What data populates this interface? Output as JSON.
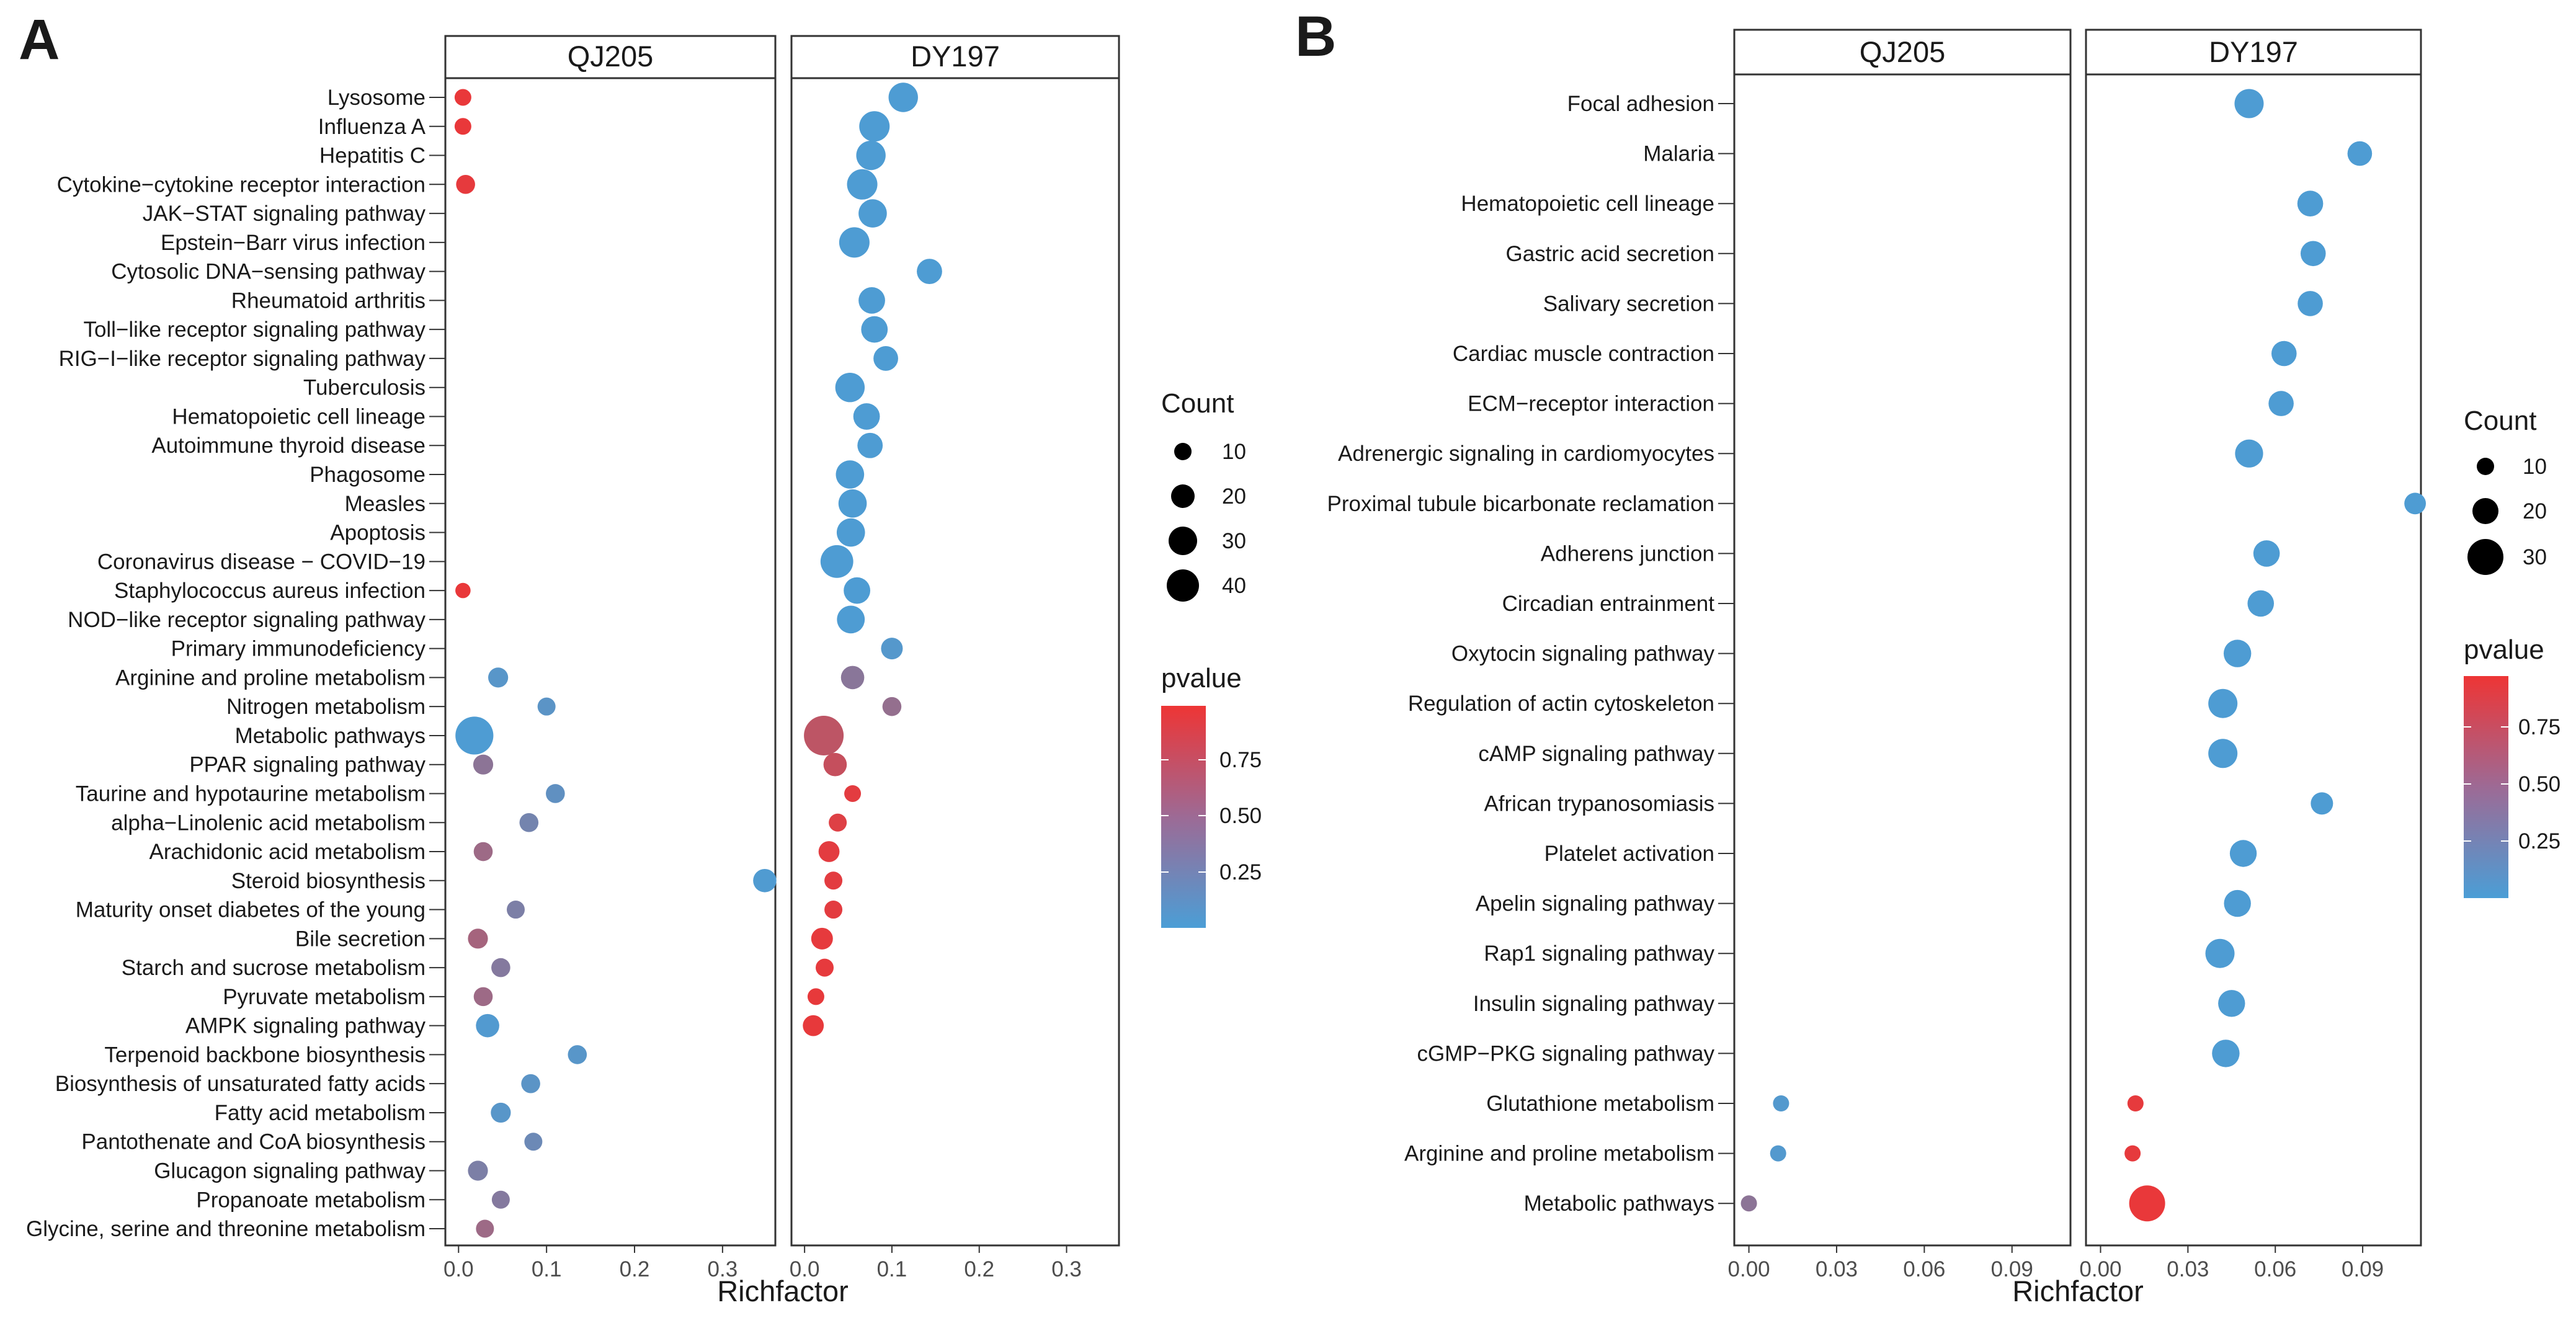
{
  "panelA": {
    "letter": "A",
    "facets": [
      "QJ205",
      "DY197"
    ],
    "xlabel": "Richfactor",
    "xticks": [
      "0.0",
      "0.1",
      "0.2",
      "0.3"
    ],
    "legend": {
      "count_title": "Count",
      "count_labels": [
        "10",
        "20",
        "30",
        "40"
      ],
      "pvalue_title": "pvalue",
      "pvalue_labels": [
        "0.75",
        "0.50",
        "0.25"
      ]
    }
  },
  "panelB": {
    "letter": "B",
    "facets": [
      "QJ205",
      "DY197"
    ],
    "xlabel": "Richfactor",
    "xticks": [
      "0.00",
      "0.03",
      "0.06",
      "0.09"
    ],
    "legend": {
      "count_title": "Count",
      "count_labels": [
        "10",
        "20",
        "30"
      ],
      "pvalue_title": "pvalue",
      "pvalue_labels": [
        "0.75",
        "0.50",
        "0.25"
      ]
    }
  },
  "colors": {
    "low_p": "#4B9ED6",
    "high_p": "#EE3535"
  },
  "chart_data": [
    {
      "panel": "A",
      "type": "scatter",
      "title": "",
      "xlabel": "Richfactor",
      "ylabel": "",
      "xlim": [
        -0.015,
        0.36
      ],
      "facets": [
        "QJ205",
        "DY197"
      ],
      "size_legend": [
        10,
        20,
        30,
        40
      ],
      "color_legend": [
        0.75,
        0.5,
        0.25
      ],
      "categories": [
        "Lysosome",
        "Influenza A",
        "Hepatitis C",
        "Cytokine−cytokine receptor interaction",
        "JAK−STAT signaling pathway",
        "Epstein−Barr virus infection",
        "Cytosolic DNA−sensing pathway",
        "Rheumatoid arthritis",
        "Toll−like receptor signaling pathway",
        "RIG−I−like receptor signaling pathway",
        "Tuberculosis",
        "Hematopoietic cell lineage",
        "Autoimmune thyroid disease",
        "Phagosome",
        "Measles",
        "Apoptosis",
        "Coronavirus disease − COVID−19",
        "Staphylococcus aureus infection",
        "NOD−like receptor signaling pathway",
        "Primary immunodeficiency",
        "Arginine and proline metabolism",
        "Nitrogen metabolism",
        "Metabolic pathways",
        "PPAR signaling pathway",
        "Taurine and hypotaurine metabolism",
        "alpha−Linolenic acid metabolism",
        "Arachidonic acid metabolism",
        "Steroid biosynthesis",
        "Maturity onset diabetes of the young",
        "Bile secretion",
        "Starch and sucrose metabolism",
        "Pyruvate metabolism",
        "AMPK signaling pathway",
        "Terpenoid backbone biosynthesis",
        "Biosynthesis of unsaturated fatty acids",
        "Fatty acid metabolism",
        "Pantothenate and CoA biosynthesis",
        "Glucagon signaling pathway",
        "Propanoate metabolism",
        "Glycine, serine and threonine metabolism"
      ],
      "series": [
        {
          "name": "QJ205",
          "points": [
            {
              "cat": "Lysosome",
              "x": 0.005,
              "count": 3,
              "pvalue": 0.97
            },
            {
              "cat": "Influenza A",
              "x": 0.005,
              "count": 3,
              "pvalue": 0.97
            },
            {
              "cat": "Cytokine−cytokine receptor interaction",
              "x": 0.008,
              "count": 5,
              "pvalue": 0.95
            },
            {
              "cat": "Staphylococcus aureus infection",
              "x": 0.005,
              "count": 2,
              "pvalue": 0.97
            },
            {
              "cat": "Arginine and proline metabolism",
              "x": 0.045,
              "count": 6,
              "pvalue": 0.08
            },
            {
              "cat": "Nitrogen metabolism",
              "x": 0.1,
              "count": 4,
              "pvalue": 0.1
            },
            {
              "cat": "Metabolic pathways",
              "x": 0.018,
              "count": 40,
              "pvalue": 0.02
            },
            {
              "cat": "PPAR signaling pathway",
              "x": 0.028,
              "count": 6,
              "pvalue": 0.4
            },
            {
              "cat": "Taurine and hypotaurine metabolism",
              "x": 0.11,
              "count": 5,
              "pvalue": 0.13
            },
            {
              "cat": "alpha−Linolenic acid metabolism",
              "x": 0.08,
              "count": 5,
              "pvalue": 0.25
            },
            {
              "cat": "Arachidonic acid metabolism",
              "x": 0.028,
              "count": 5,
              "pvalue": 0.5
            },
            {
              "cat": "Steroid biosynthesis",
              "x": 0.348,
              "count": 10,
              "pvalue": 0.03
            },
            {
              "cat": "Maturity onset diabetes of the young",
              "x": 0.065,
              "count": 4,
              "pvalue": 0.3
            },
            {
              "cat": "Bile secretion",
              "x": 0.022,
              "count": 6,
              "pvalue": 0.55
            },
            {
              "cat": "Starch and sucrose metabolism",
              "x": 0.048,
              "count": 5,
              "pvalue": 0.35
            },
            {
              "cat": "Pyruvate metabolism",
              "x": 0.028,
              "count": 5,
              "pvalue": 0.5
            },
            {
              "cat": "AMPK signaling pathway",
              "x": 0.033,
              "count": 10,
              "pvalue": 0.04
            },
            {
              "cat": "Terpenoid backbone biosynthesis",
              "x": 0.135,
              "count": 5,
              "pvalue": 0.08
            },
            {
              "cat": "Biosynthesis of unsaturated fatty acids",
              "x": 0.082,
              "count": 5,
              "pvalue": 0.1
            },
            {
              "cat": "Fatty acid metabolism",
              "x": 0.048,
              "count": 6,
              "pvalue": 0.08
            },
            {
              "cat": "Pantothenate and CoA biosynthesis",
              "x": 0.085,
              "count": 4,
              "pvalue": 0.2
            },
            {
              "cat": "Glucagon signaling pathway",
              "x": 0.022,
              "count": 6,
              "pvalue": 0.3
            },
            {
              "cat": "Propanoate metabolism",
              "x": 0.048,
              "count": 4,
              "pvalue": 0.35
            },
            {
              "cat": "Glycine, serine and threonine metabolism",
              "x": 0.03,
              "count": 4,
              "pvalue": 0.5
            }
          ]
        },
        {
          "name": "DY197",
          "points": [
            {
              "cat": "Lysosome",
              "x": 0.113,
              "count": 20,
              "pvalue": 0.02
            },
            {
              "cat": "Influenza A",
              "x": 0.08,
              "count": 22,
              "pvalue": 0.02
            },
            {
              "cat": "Hepatitis C",
              "x": 0.076,
              "count": 20,
              "pvalue": 0.02
            },
            {
              "cat": "Cytokine−cytokine receptor interaction",
              "x": 0.066,
              "count": 22,
              "pvalue": 0.02
            },
            {
              "cat": "JAK−STAT signaling pathway",
              "x": 0.078,
              "count": 18,
              "pvalue": 0.02
            },
            {
              "cat": "Epstein−Barr virus infection",
              "x": 0.057,
              "count": 22,
              "pvalue": 0.02
            },
            {
              "cat": "Cytosolic DNA−sensing pathway",
              "x": 0.143,
              "count": 13,
              "pvalue": 0.02
            },
            {
              "cat": "Rheumatoid arthritis",
              "x": 0.077,
              "count": 15,
              "pvalue": 0.02
            },
            {
              "cat": "Toll−like receptor signaling pathway",
              "x": 0.08,
              "count": 15,
              "pvalue": 0.02
            },
            {
              "cat": "RIG−I−like receptor signaling pathway",
              "x": 0.093,
              "count": 12,
              "pvalue": 0.02
            },
            {
              "cat": "Tuberculosis",
              "x": 0.052,
              "count": 20,
              "pvalue": 0.02
            },
            {
              "cat": "Hematopoietic cell lineage",
              "x": 0.071,
              "count": 15,
              "pvalue": 0.02
            },
            {
              "cat": "Autoimmune thyroid disease",
              "x": 0.075,
              "count": 13,
              "pvalue": 0.02
            },
            {
              "cat": "Phagosome",
              "x": 0.052,
              "count": 18,
              "pvalue": 0.02
            },
            {
              "cat": "Measles",
              "x": 0.055,
              "count": 18,
              "pvalue": 0.02
            },
            {
              "cat": "Apoptosis",
              "x": 0.053,
              "count": 18,
              "pvalue": 0.02
            },
            {
              "cat": "Coronavirus disease − COVID−19",
              "x": 0.037,
              "count": 27,
              "pvalue": 0.02
            },
            {
              "cat": "Staphylococcus aureus infection",
              "x": 0.06,
              "count": 15,
              "pvalue": 0.02
            },
            {
              "cat": "NOD−like receptor signaling pathway",
              "x": 0.053,
              "count": 17,
              "pvalue": 0.02
            },
            {
              "cat": "Primary immunodeficiency",
              "x": 0.1,
              "count": 8,
              "pvalue": 0.06
            },
            {
              "cat": "Arginine and proline metabolism",
              "x": 0.055,
              "count": 10,
              "pvalue": 0.38
            },
            {
              "cat": "Nitrogen metabolism",
              "x": 0.1,
              "count": 5,
              "pvalue": 0.45
            },
            {
              "cat": "Metabolic pathways",
              "x": 0.022,
              "count": 45,
              "pvalue": 0.7
            },
            {
              "cat": "PPAR signaling pathway",
              "x": 0.035,
              "count": 10,
              "pvalue": 0.75
            },
            {
              "cat": "Taurine and hypotaurine metabolism",
              "x": 0.055,
              "count": 3,
              "pvalue": 0.93
            },
            {
              "cat": "alpha−Linolenic acid metabolism",
              "x": 0.038,
              "count": 4,
              "pvalue": 0.9
            },
            {
              "cat": "Arachidonic acid metabolism",
              "x": 0.028,
              "count": 7,
              "pvalue": 0.93
            },
            {
              "cat": "Steroid biosynthesis",
              "x": 0.033,
              "count": 4,
              "pvalue": 0.93
            },
            {
              "cat": "Maturity onset diabetes of the young",
              "x": 0.033,
              "count": 4,
              "pvalue": 0.93
            },
            {
              "cat": "Bile secretion",
              "x": 0.02,
              "count": 8,
              "pvalue": 0.95
            },
            {
              "cat": "Starch and sucrose metabolism",
              "x": 0.023,
              "count": 4,
              "pvalue": 0.95
            },
            {
              "cat": "Pyruvate metabolism",
              "x": 0.013,
              "count": 3,
              "pvalue": 0.96
            },
            {
              "cat": "AMPK signaling pathway",
              "x": 0.01,
              "count": 7,
              "pvalue": 0.96
            }
          ]
        }
      ]
    },
    {
      "panel": "B",
      "type": "scatter",
      "title": "",
      "xlabel": "Richfactor",
      "ylabel": "",
      "xlim": [
        -0.005,
        0.11
      ],
      "facets": [
        "QJ205",
        "DY197"
      ],
      "size_legend": [
        10,
        20,
        30
      ],
      "color_legend": [
        0.75,
        0.5,
        0.25
      ],
      "categories": [
        "Focal adhesion",
        "Malaria",
        "Hematopoietic cell lineage",
        "Gastric acid secretion",
        "Salivary secretion",
        "Cardiac muscle contraction",
        "ECM−receptor interaction",
        "Adrenergic signaling in cardiomyocytes",
        "Proximal tubule bicarbonate reclamation",
        "Adherens junction",
        "Circadian entrainment",
        "Oxytocin signaling pathway",
        "Regulation of actin cytoskeleton",
        "cAMP signaling pathway",
        "African trypanosomiasis",
        "Platelet activation",
        "Apelin signaling pathway",
        "Rap1 signaling pathway",
        "Insulin signaling pathway",
        "cGMP−PKG signaling pathway",
        "Glutathione metabolism",
        "Arginine and proline metabolism",
        "Metabolic pathways"
      ],
      "series": [
        {
          "name": "QJ205",
          "points": [
            {
              "cat": "Glutathione metabolism",
              "x": 0.011,
              "count": 2,
              "pvalue": 0.05
            },
            {
              "cat": "Arginine and proline metabolism",
              "x": 0.01,
              "count": 2,
              "pvalue": 0.05
            },
            {
              "cat": "Metabolic pathways",
              "x": 0.0,
              "count": 2,
              "pvalue": 0.4
            }
          ]
        },
        {
          "name": "DY197",
          "points": [
            {
              "cat": "Focal adhesion",
              "x": 0.051,
              "count": 19,
              "pvalue": 0.02
            },
            {
              "cat": "Malaria",
              "x": 0.089,
              "count": 11,
              "pvalue": 0.02
            },
            {
              "cat": "Hematopoietic cell lineage",
              "x": 0.072,
              "count": 13,
              "pvalue": 0.02
            },
            {
              "cat": "Gastric acid secretion",
              "x": 0.073,
              "count": 12,
              "pvalue": 0.02
            },
            {
              "cat": "Salivary secretion",
              "x": 0.072,
              "count": 12,
              "pvalue": 0.02
            },
            {
              "cat": "Cardiac muscle contraction",
              "x": 0.063,
              "count": 12,
              "pvalue": 0.02
            },
            {
              "cat": "ECM−receptor interaction",
              "x": 0.062,
              "count": 12,
              "pvalue": 0.02
            },
            {
              "cat": "Adrenergic signaling in cardiomyocytes",
              "x": 0.051,
              "count": 17,
              "pvalue": 0.02
            },
            {
              "cat": "Proximal tubule bicarbonate reclamation",
              "x": 0.108,
              "count": 7,
              "pvalue": 0.02
            },
            {
              "cat": "Adherens junction",
              "x": 0.057,
              "count": 14,
              "pvalue": 0.02
            },
            {
              "cat": "Circadian entrainment",
              "x": 0.055,
              "count": 14,
              "pvalue": 0.02
            },
            {
              "cat": "Oxytocin signaling pathway",
              "x": 0.047,
              "count": 16,
              "pvalue": 0.02
            },
            {
              "cat": "Regulation of actin cytoskeleton",
              "x": 0.042,
              "count": 19,
              "pvalue": 0.02
            },
            {
              "cat": "cAMP signaling pathway",
              "x": 0.042,
              "count": 19,
              "pvalue": 0.02
            },
            {
              "cat": "African trypanosomiasis",
              "x": 0.076,
              "count": 8,
              "pvalue": 0.02
            },
            {
              "cat": "Platelet activation",
              "x": 0.049,
              "count": 15,
              "pvalue": 0.02
            },
            {
              "cat": "Apelin signaling pathway",
              "x": 0.047,
              "count": 15,
              "pvalue": 0.02
            },
            {
              "cat": "Rap1 signaling pathway",
              "x": 0.041,
              "count": 19,
              "pvalue": 0.02
            },
            {
              "cat": "Insulin signaling pathway",
              "x": 0.045,
              "count": 15,
              "pvalue": 0.02
            },
            {
              "cat": "cGMP−PKG signaling pathway",
              "x": 0.043,
              "count": 16,
              "pvalue": 0.02
            },
            {
              "cat": "Glutathione metabolism",
              "x": 0.012,
              "count": 2,
              "pvalue": 0.95
            },
            {
              "cat": "Arginine and proline metabolism",
              "x": 0.011,
              "count": 2,
              "pvalue": 0.95
            },
            {
              "cat": "Metabolic pathways",
              "x": 0.016,
              "count": 35,
              "pvalue": 0.97
            }
          ]
        }
      ]
    }
  ]
}
